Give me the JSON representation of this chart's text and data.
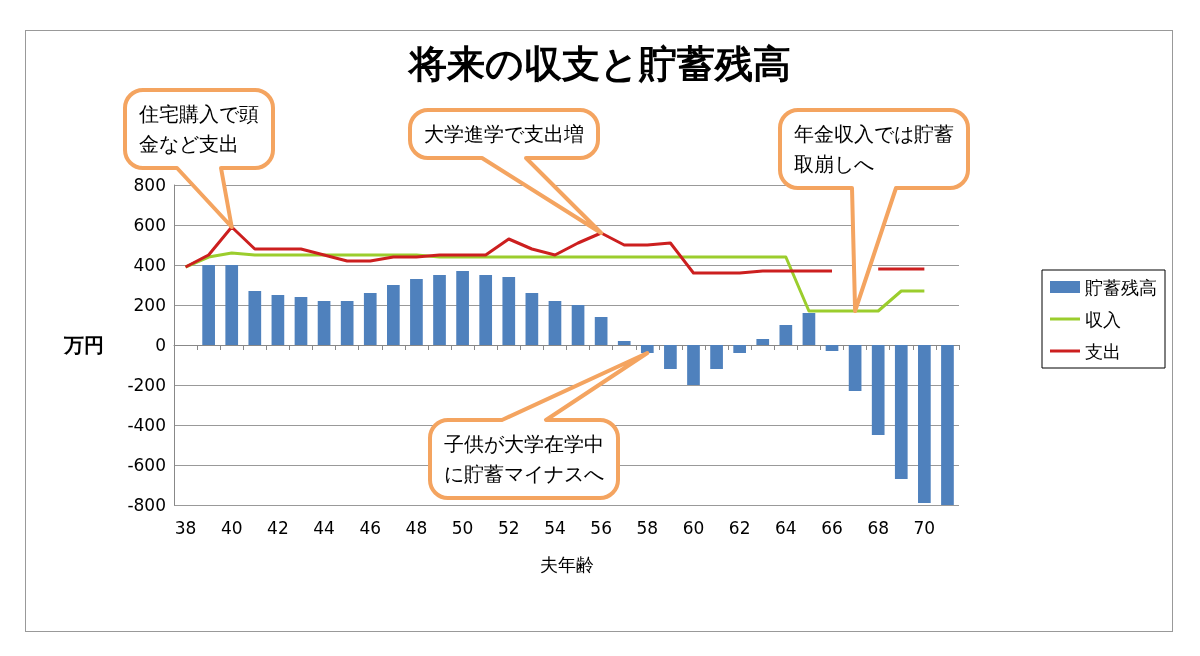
{
  "chart_data": {
    "type": "bar",
    "title": "将来の収支と貯蓄残高",
    "xlabel": "夫年齢",
    "ylabel": "万円",
    "categories": [
      "38",
      null,
      "40",
      null,
      "42",
      null,
      "44",
      null,
      "46",
      null,
      "48",
      null,
      "50",
      null,
      "52",
      null,
      "54",
      null,
      "56",
      null,
      "58",
      null,
      "60",
      null,
      "62",
      null,
      "64",
      null,
      "66",
      null,
      "68",
      null,
      "70",
      null
    ],
    "series": [
      {
        "name": "貯蓄残高",
        "color": "#4f81bd",
        "values": [
          null,
          400,
          400,
          270,
          250,
          240,
          220,
          220,
          260,
          300,
          330,
          350,
          370,
          350,
          340,
          260,
          220,
          200,
          140,
          20,
          -40,
          -120,
          -200,
          -120,
          -40,
          30,
          100,
          160,
          -30,
          -230,
          -450,
          -670,
          -790,
          -800
        ]
      },
      {
        "name": "収入",
        "type": "line",
        "color": "#9bcd2d",
        "values": [
          390,
          440,
          460,
          450,
          450,
          450,
          450,
          450,
          450,
          450,
          450,
          440,
          440,
          440,
          440,
          440,
          440,
          440,
          440,
          440,
          440,
          440,
          440,
          440,
          440,
          440,
          440,
          170,
          170,
          170,
          170,
          270,
          270,
          null
        ]
      },
      {
        "name": "支出",
        "type": "line",
        "color": "#cc1f1f",
        "values": [
          390,
          450,
          590,
          480,
          480,
          480,
          450,
          420,
          420,
          440,
          440,
          450,
          450,
          450,
          530,
          480,
          450,
          510,
          560,
          500,
          500,
          510,
          360,
          360,
          360,
          370,
          370,
          370,
          370,
          null,
          380,
          380,
          380,
          null
        ]
      }
    ],
    "ylim": [
      -800,
      800
    ],
    "yticks": [
      -800,
      -600,
      -400,
      -200,
      0,
      200,
      400,
      600,
      800
    ],
    "grid": "y",
    "legend": "right",
    "marker": "none",
    "annotations": [
      "住宅購入で頭金など支出",
      "大学進学で支出増",
      "年金収入では貯蓄取崩しへ",
      "子供が大学在学中に貯蓄マイナスへ"
    ]
  }
}
